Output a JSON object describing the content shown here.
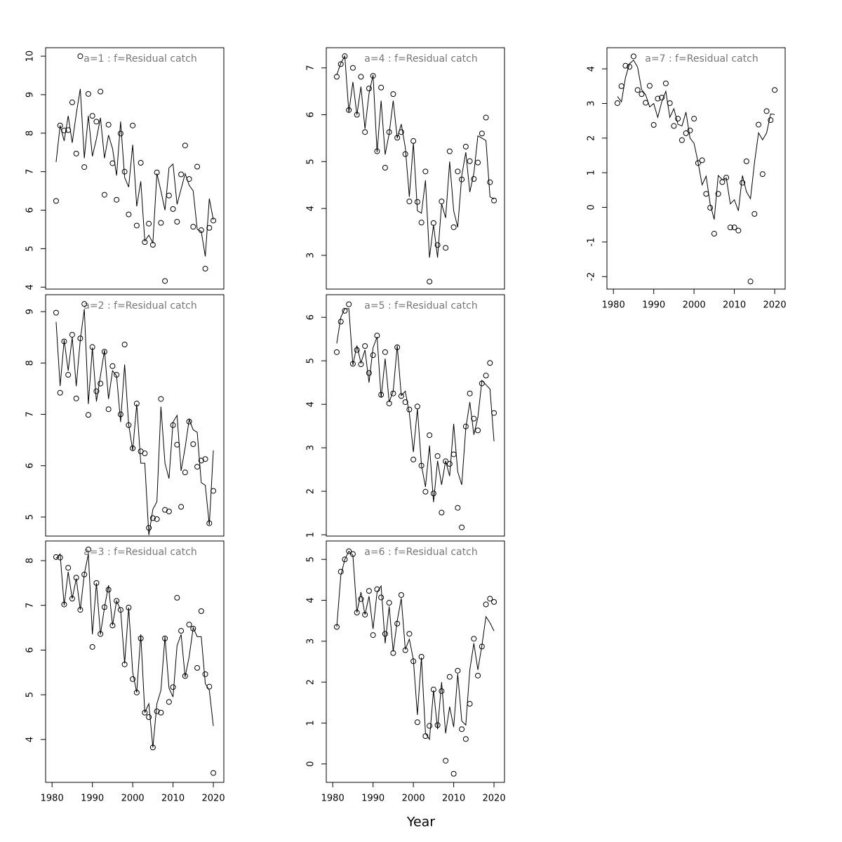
{
  "xlabel": "Year",
  "chart_data": [
    {
      "type": "line",
      "title": "a=1  :  f=Residual catch",
      "x": [
        1981,
        1982,
        1983,
        1984,
        1985,
        1986,
        1987,
        1988,
        1989,
        1990,
        1991,
        1992,
        1993,
        1994,
        1995,
        1996,
        1997,
        1998,
        1999,
        2000,
        2001,
        2002,
        2003,
        2004,
        2005,
        2006,
        2007,
        2008,
        2009,
        2010,
        2011,
        2012,
        2013,
        2014,
        2015,
        2016,
        2017,
        2018,
        2019,
        2020
      ],
      "xlim": [
        1978.4,
        2022.6
      ],
      "ylim": [
        3.95,
        10.22
      ],
      "yticks": [
        4,
        5,
        6,
        7,
        8,
        9,
        10
      ],
      "series": [
        {
          "color": "#000000",
          "marker": "circle",
          "values": [
            6.24,
            8.2,
            8.07,
            8.08,
            8.8,
            7.47,
            10.0,
            7.12,
            9.02,
            8.45,
            8.3,
            9.08,
            6.4,
            8.22,
            7.22,
            6.27,
            7.99,
            7.0,
            5.89,
            8.2,
            5.6,
            7.23,
            5.17,
            5.65,
            5.1,
            6.98,
            5.67,
            4.16,
            6.38,
            6.03,
            5.7,
            6.93,
            7.68,
            6.81,
            5.57,
            7.13,
            5.48,
            4.48,
            5.54,
            5.73
          ]
        },
        {
          "color": "#000000",
          "values": [
            7.25,
            8.2,
            7.8,
            8.45,
            7.75,
            8.5,
            9.15,
            7.35,
            8.45,
            7.4,
            7.85,
            8.4,
            7.35,
            7.95,
            7.6,
            6.9,
            8.3,
            6.85,
            6.6,
            7.7,
            6.1,
            6.75,
            5.2,
            5.35,
            5.15,
            6.95,
            6.5,
            6.0,
            7.1,
            7.2,
            6.15,
            6.55,
            6.95,
            6.65,
            6.5,
            5.5,
            5.45,
            4.8,
            6.3,
            5.75
          ]
        }
      ]
    },
    {
      "type": "line",
      "title": "a=2  :  f=Residual catch",
      "x": [
        1981,
        1982,
        1983,
        1984,
        1985,
        1986,
        1987,
        1988,
        1989,
        1990,
        1991,
        1992,
        1993,
        1994,
        1995,
        1996,
        1997,
        1998,
        1999,
        2000,
        2001,
        2002,
        2003,
        2004,
        2005,
        2006,
        2007,
        2008,
        2009,
        2010,
        2011,
        2012,
        2013,
        2014,
        2015,
        2016,
        2017,
        2018,
        2019,
        2020
      ],
      "xlim": [
        1978.4,
        2022.6
      ],
      "ylim": [
        4.63,
        9.33
      ],
      "yticks": [
        5,
        6,
        7,
        8,
        9
      ],
      "series": [
        {
          "color": "#000000",
          "marker": "circle",
          "values": [
            8.98,
            7.42,
            8.42,
            7.77,
            8.55,
            7.31,
            8.48,
            9.15,
            6.99,
            8.31,
            7.45,
            7.6,
            8.22,
            7.1,
            7.94,
            7.77,
            7.0,
            8.36,
            6.79,
            6.34,
            7.21,
            6.28,
            6.24,
            4.79,
            4.98,
            4.96,
            7.3,
            5.14,
            5.11,
            6.79,
            6.41,
            5.2,
            5.87,
            6.86,
            6.42,
            5.98,
            6.1,
            6.13,
            4.88,
            5.51
          ]
        },
        {
          "color": "#000000",
          "values": [
            8.8,
            7.55,
            8.45,
            7.85,
            8.5,
            7.55,
            8.45,
            9.05,
            7.2,
            8.3,
            7.25,
            7.75,
            8.25,
            7.3,
            7.85,
            7.75,
            6.85,
            7.97,
            6.8,
            6.3,
            7.2,
            6.05,
            6.05,
            4.65,
            5.15,
            5.3,
            7.15,
            6.05,
            5.75,
            6.85,
            6.98,
            5.9,
            6.35,
            6.9,
            6.7,
            6.65,
            5.67,
            5.62,
            4.85,
            6.3
          ]
        }
      ]
    },
    {
      "type": "line",
      "title": "a=3  :  f=Residual catch",
      "x": [
        1981,
        1982,
        1983,
        1984,
        1985,
        1986,
        1987,
        1988,
        1989,
        1990,
        1991,
        1992,
        1993,
        1994,
        1995,
        1996,
        1997,
        1998,
        1999,
        2000,
        2001,
        2002,
        2003,
        2004,
        2005,
        2006,
        2007,
        2008,
        2009,
        2010,
        2011,
        2012,
        2013,
        2014,
        2015,
        2016,
        2017,
        2018,
        2019,
        2020
      ],
      "xlim": [
        1978.4,
        2022.6
      ],
      "xticks": [
        1980,
        1990,
        2000,
        2010,
        2020
      ],
      "ylim": [
        3.04,
        8.44
      ],
      "yticks": [
        4,
        5,
        6,
        7,
        8
      ],
      "series": [
        {
          "color": "#000000",
          "marker": "circle",
          "values": [
            8.08,
            8.07,
            7.02,
            7.84,
            7.15,
            7.62,
            6.9,
            7.69,
            8.25,
            6.07,
            7.5,
            6.36,
            6.96,
            7.35,
            6.55,
            7.1,
            6.9,
            5.68,
            6.95,
            5.35,
            5.05,
            6.26,
            4.6,
            4.5,
            3.82,
            4.63,
            4.6,
            6.26,
            4.84,
            5.17,
            7.17,
            6.43,
            5.42,
            6.57,
            6.48,
            5.6,
            6.87,
            5.46,
            5.18,
            3.25
          ]
        },
        {
          "color": "#000000",
          "values": [
            8.05,
            8.15,
            7.0,
            7.75,
            7.15,
            7.6,
            6.9,
            7.7,
            8.15,
            6.35,
            7.5,
            6.35,
            6.95,
            7.45,
            6.55,
            7.1,
            6.9,
            5.7,
            6.95,
            5.5,
            5.05,
            6.35,
            4.6,
            4.8,
            3.82,
            4.8,
            5.1,
            6.3,
            5.15,
            4.95,
            6.1,
            6.35,
            5.4,
            5.85,
            6.5,
            6.3,
            6.3,
            5.25,
            5.1,
            4.3
          ]
        }
      ]
    },
    {
      "type": "line",
      "title": "a=4  :  f=Residual catch",
      "x": [
        1981,
        1982,
        1983,
        1984,
        1985,
        1986,
        1987,
        1988,
        1989,
        1990,
        1991,
        1992,
        1993,
        1994,
        1995,
        1996,
        1997,
        1998,
        1999,
        2000,
        2001,
        2002,
        2003,
        2004,
        2005,
        2006,
        2007,
        2008,
        2009,
        2010,
        2011,
        2012,
        2013,
        2014,
        2015,
        2016,
        2017,
        2018,
        2019,
        2020
      ],
      "xlim": [
        1978.4,
        2022.6
      ],
      "ylim": [
        2.28,
        7.43
      ],
      "yticks": [
        3,
        4,
        5,
        6,
        7
      ],
      "series": [
        {
          "color": "#000000",
          "marker": "circle",
          "values": [
            6.81,
            7.08,
            7.25,
            6.1,
            7.0,
            6.0,
            6.81,
            5.63,
            6.56,
            6.83,
            5.22,
            6.58,
            4.87,
            5.63,
            6.44,
            5.51,
            5.63,
            5.16,
            4.15,
            5.44,
            4.14,
            3.7,
            4.79,
            2.44,
            3.69,
            3.22,
            4.15,
            3.16,
            5.22,
            3.6,
            4.79,
            4.62,
            5.32,
            5.01,
            4.63,
            4.98,
            5.6,
            5.94,
            4.56,
            4.17
          ]
        },
        {
          "color": "#000000",
          "values": [
            6.85,
            7.1,
            7.25,
            6.05,
            6.7,
            6.0,
            6.6,
            5.7,
            6.45,
            6.85,
            5.2,
            6.3,
            5.15,
            5.6,
            6.3,
            5.5,
            5.8,
            5.3,
            4.25,
            5.4,
            3.95,
            3.9,
            4.6,
            2.95,
            3.65,
            2.95,
            4.1,
            3.8,
            5.0,
            3.95,
            3.6,
            4.7,
            5.2,
            4.35,
            4.75,
            5.55,
            5.5,
            5.45,
            4.25,
            4.2
          ]
        }
      ]
    },
    {
      "type": "line",
      "title": "a=5  :  f=Residual catch",
      "x": [
        1981,
        1982,
        1983,
        1984,
        1985,
        1986,
        1987,
        1988,
        1989,
        1990,
        1991,
        1992,
        1993,
        1994,
        1995,
        1996,
        1997,
        1998,
        1999,
        2000,
        2001,
        2002,
        2003,
        2004,
        2005,
        2006,
        2007,
        2008,
        2009,
        2010,
        2011,
        2012,
        2013,
        2014,
        2015,
        2016,
        2017,
        2018,
        2019,
        2020
      ],
      "xlim": [
        1978.4,
        2022.6
      ],
      "ylim": [
        0.97,
        6.52
      ],
      "yticks": [
        1,
        2,
        3,
        4,
        5,
        6
      ],
      "series": [
        {
          "color": "#000000",
          "marker": "circle",
          "values": [
            5.2,
            5.9,
            6.15,
            6.3,
            4.93,
            5.25,
            4.92,
            5.34,
            4.72,
            5.13,
            5.58,
            4.22,
            5.2,
            4.02,
            4.25,
            5.31,
            4.19,
            4.05,
            3.88,
            2.73,
            3.95,
            2.59,
            1.99,
            3.29,
            1.95,
            2.81,
            1.51,
            2.69,
            2.63,
            2.85,
            1.62,
            1.17,
            3.49,
            4.25,
            3.67,
            3.4,
            4.48,
            4.66,
            4.95,
            3.8
          ]
        },
        {
          "color": "#000000",
          "values": [
            5.4,
            6.0,
            6.2,
            6.2,
            4.9,
            5.35,
            4.95,
            5.25,
            4.5,
            5.3,
            5.55,
            4.15,
            5.05,
            4.05,
            4.3,
            5.35,
            4.2,
            4.3,
            3.8,
            2.9,
            3.9,
            2.6,
            2.1,
            3.05,
            1.75,
            2.7,
            2.15,
            2.7,
            2.35,
            3.55,
            2.45,
            2.15,
            3.45,
            4.05,
            3.3,
            3.7,
            4.55,
            4.45,
            4.35,
            3.15
          ]
        }
      ]
    },
    {
      "type": "line",
      "title": "a=6  :  f=Residual catch",
      "x": [
        1981,
        1982,
        1983,
        1984,
        1985,
        1986,
        1987,
        1988,
        1989,
        1990,
        1991,
        1992,
        1993,
        1994,
        1995,
        1996,
        1997,
        1998,
        1999,
        2000,
        2001,
        2002,
        2003,
        2004,
        2005,
        2006,
        2007,
        2008,
        2009,
        2010,
        2011,
        2012,
        2013,
        2014,
        2015,
        2016,
        2017,
        2018,
        2019,
        2020
      ],
      "xlim": [
        1978.4,
        2022.6
      ],
      "xticks": [
        1980,
        1990,
        2000,
        2010,
        2020
      ],
      "ylim": [
        -0.45,
        5.45
      ],
      "yticks": [
        0,
        1,
        2,
        3,
        4,
        5
      ],
      "series": [
        {
          "color": "#000000",
          "marker": "circle",
          "values": [
            3.35,
            4.7,
            5.0,
            5.2,
            5.13,
            3.7,
            4.03,
            3.65,
            4.23,
            3.15,
            4.27,
            4.07,
            3.18,
            3.94,
            2.71,
            3.43,
            4.13,
            2.78,
            3.18,
            2.51,
            1.02,
            2.62,
            0.68,
            0.93,
            1.82,
            0.95,
            1.78,
            0.08,
            2.13,
            -0.24,
            2.28,
            0.85,
            0.61,
            1.47,
            3.06,
            2.16,
            2.87,
            3.9,
            4.04,
            3.96
          ]
        },
        {
          "color": "#000000",
          "values": [
            3.35,
            4.6,
            5.0,
            5.2,
            5.1,
            3.7,
            4.2,
            3.65,
            4.1,
            3.3,
            4.2,
            4.35,
            2.95,
            3.85,
            2.75,
            3.5,
            4.05,
            2.8,
            3.05,
            2.55,
            1.2,
            2.6,
            0.75,
            0.6,
            1.8,
            0.85,
            2.0,
            0.75,
            1.4,
            0.9,
            2.2,
            1.05,
            0.95,
            2.3,
            2.95,
            2.3,
            2.9,
            3.6,
            3.45,
            3.25
          ]
        }
      ]
    },
    {
      "type": "line",
      "title": "a=7  :  f=Residual catch",
      "x": [
        1981,
        1982,
        1983,
        1984,
        1985,
        1986,
        1987,
        1988,
        1989,
        1990,
        1991,
        1992,
        1993,
        1994,
        1995,
        1996,
        1997,
        1998,
        1999,
        2000,
        2001,
        2002,
        2003,
        2004,
        2005,
        2006,
        2007,
        2008,
        2009,
        2010,
        2011,
        2012,
        2013,
        2014,
        2015,
        2016,
        2017,
        2018,
        2019,
        2020
      ],
      "xlim": [
        1978.4,
        2022.6
      ],
      "xticks": [
        1980,
        1990,
        2000,
        2010,
        2020
      ],
      "ylim": [
        -2.36,
        4.61
      ],
      "yticks": [
        -2,
        -1,
        0,
        1,
        2,
        3,
        4
      ],
      "series": [
        {
          "color": "#000000",
          "marker": "circle",
          "values": [
            3.01,
            3.5,
            4.09,
            4.06,
            4.36,
            3.39,
            3.27,
            3.02,
            3.51,
            2.38,
            3.14,
            3.17,
            3.58,
            3.01,
            2.35,
            2.56,
            1.94,
            2.14,
            2.22,
            2.56,
            1.28,
            1.36,
            0.39,
            -0.01,
            -0.76,
            0.39,
            0.73,
            0.86,
            -0.58,
            -0.58,
            -0.67,
            0.71,
            1.33,
            -2.14,
            -0.19,
            2.39,
            0.96,
            2.78,
            2.52,
            3.39
          ]
        },
        {
          "color": "#000000",
          "values": [
            3.2,
            3.05,
            3.75,
            4.15,
            4.25,
            4.05,
            3.4,
            3.25,
            2.9,
            3.0,
            2.6,
            3.05,
            3.35,
            2.6,
            2.85,
            2.4,
            2.35,
            2.75,
            2.0,
            1.85,
            1.3,
            0.65,
            0.9,
            0.1,
            -0.35,
            0.92,
            0.8,
            0.85,
            0.1,
            0.22,
            -0.1,
            0.92,
            0.45,
            0.25,
            1.3,
            2.15,
            1.95,
            2.15,
            2.7,
            2.68
          ]
        }
      ]
    }
  ]
}
